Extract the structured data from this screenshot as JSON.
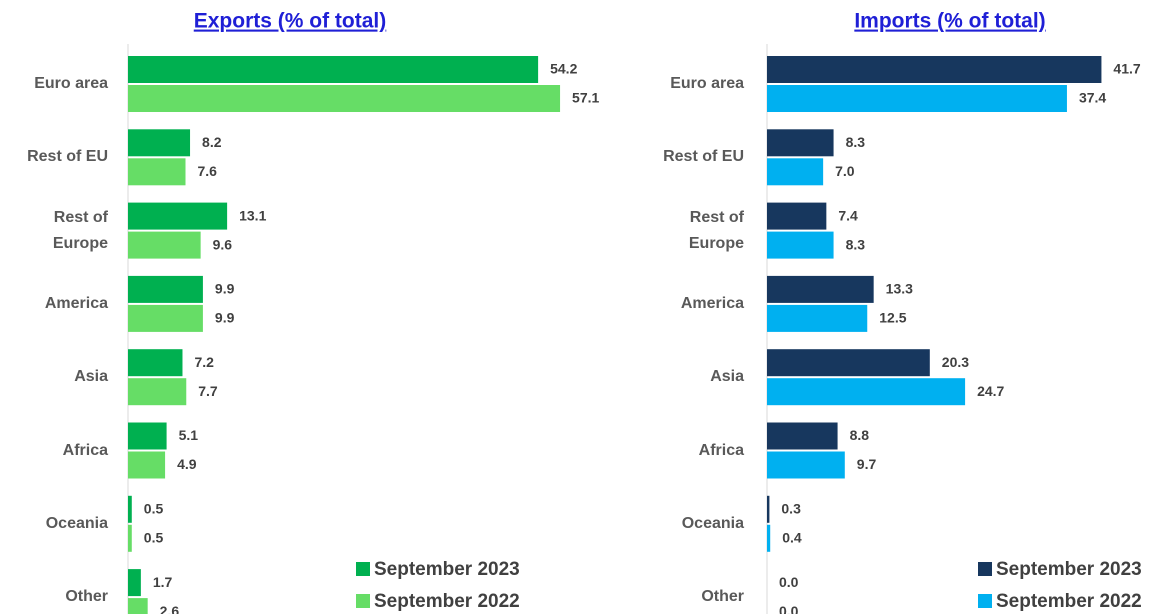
{
  "chart_data": [
    {
      "type": "bar",
      "title": "Exports (% of total)",
      "categories": [
        "Euro area",
        "Rest of EU",
        "Rest of Europe",
        "America",
        "Asia",
        "Africa",
        "Oceania",
        "Other"
      ],
      "series": [
        {
          "name": "September 2023",
          "color": "#00b050",
          "values": [
            54.2,
            8.2,
            13.1,
            9.9,
            7.2,
            5.1,
            0.5,
            1.7
          ]
        },
        {
          "name": "September 2022",
          "color": "#66dd66",
          "values": [
            57.1,
            7.6,
            9.6,
            9.9,
            7.7,
            4.9,
            0.5,
            2.6
          ]
        }
      ],
      "xlim": [
        0,
        60
      ],
      "legend": "lower right"
    },
    {
      "type": "bar",
      "title": "Imports (% of total)",
      "categories": [
        "Euro area",
        "Rest of EU",
        "Rest of Europe",
        "America",
        "Asia",
        "Africa",
        "Oceania",
        "Other"
      ],
      "series": [
        {
          "name": "September 2023",
          "color": "#17375e",
          "values": [
            41.7,
            8.3,
            7.4,
            13.3,
            20.3,
            8.8,
            0.3,
            0
          ],
          "value_labels": [
            "41.7",
            "8.3",
            "7.4",
            "13.3",
            "20.3",
            "8.8",
            "0.3",
            "0.0"
          ]
        },
        {
          "name": "September 2022",
          "color": "#00b0f0",
          "values": [
            37.4,
            7.0,
            8.3,
            12.5,
            24.7,
            9.7,
            0.4,
            0
          ],
          "value_labels": [
            "37.4",
            "7.0",
            "8.3",
            "12.5",
            "24.7",
            "9.7",
            "0.4",
            "0.0"
          ]
        }
      ],
      "xlim": [
        0,
        50
      ],
      "legend": "lower right"
    }
  ]
}
